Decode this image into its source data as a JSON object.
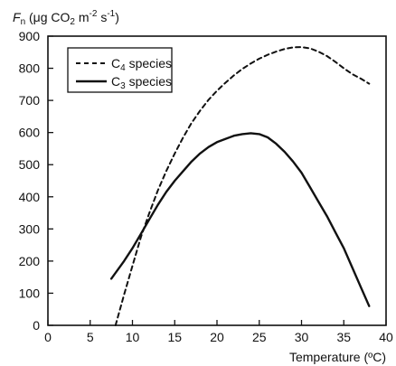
{
  "chart_data": {
    "type": "line",
    "ylabel": {
      "prefix": "F",
      "prefix_sub": "n",
      "open": " (μg CO",
      "sub": "2",
      "mid": " m",
      "sup1": "-2",
      "mid2": " s",
      "sup2": "-1",
      "close": ")"
    },
    "xlabel": "Temperature (ºC)",
    "xlim": [
      0,
      40
    ],
    "ylim": [
      0,
      900
    ],
    "xticks": [
      0,
      5,
      10,
      15,
      20,
      25,
      30,
      35,
      40
    ],
    "yticks": [
      0,
      100,
      200,
      300,
      400,
      500,
      600,
      700,
      800,
      900
    ],
    "grid": false,
    "legend_position": "top-left",
    "series": [
      {
        "name_parts": {
          "pre": "C",
          "sub": "4",
          "post": " species"
        },
        "style": "dashed",
        "color": "#111111",
        "x": [
          8,
          9,
          10,
          11,
          12,
          13,
          14,
          15,
          16,
          17,
          18,
          19,
          20,
          21,
          22,
          23,
          24,
          25,
          26,
          27,
          28,
          29,
          30,
          31,
          32,
          33,
          34,
          35,
          36,
          37,
          38
        ],
        "y": [
          0,
          95,
          185,
          275,
          350,
          420,
          480,
          535,
          585,
          630,
          668,
          702,
          730,
          755,
          778,
          798,
          815,
          830,
          842,
          852,
          860,
          865,
          866,
          862,
          852,
          838,
          820,
          800,
          782,
          768,
          752
        ]
      },
      {
        "name_parts": {
          "pre": "C",
          "sub": "3",
          "post": " species"
        },
        "style": "solid",
        "color": "#111111",
        "x": [
          7.5,
          9,
          10,
          11,
          12,
          13,
          14,
          15,
          16,
          17,
          18,
          19,
          20,
          21,
          22,
          23,
          24,
          25,
          26,
          27,
          28,
          29,
          30,
          31,
          32,
          33,
          34,
          35,
          36,
          37,
          38
        ],
        "y": [
          145,
          200,
          240,
          285,
          330,
          375,
          415,
          450,
          480,
          510,
          535,
          555,
          570,
          580,
          590,
          595,
          598,
          595,
          585,
          565,
          540,
          510,
          475,
          430,
          385,
          340,
          290,
          240,
          180,
          120,
          60
        ]
      }
    ]
  }
}
